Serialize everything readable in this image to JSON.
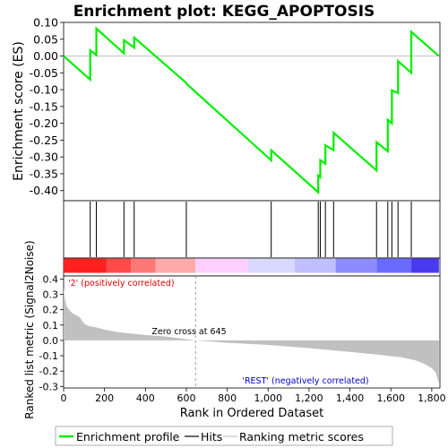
{
  "chart_data": [
    {
      "panel": "enrichment-profile",
      "type": "line",
      "title": "Enrichment plot: KEGG_APOPTOSIS",
      "ylabel": "Enrichment score (ES)",
      "xlim": [
        0,
        1840
      ],
      "ylim": [
        -0.43,
        0.1
      ],
      "yticks": [
        "0.10",
        "0.05",
        "0.00",
        "-0.05",
        "-0.10",
        "-0.15",
        "-0.20",
        "-0.25",
        "-0.30",
        "-0.35",
        "-0.40"
      ],
      "ytick_values": [
        0.1,
        0.05,
        0.0,
        -0.05,
        -0.1,
        -0.15,
        -0.2,
        -0.25,
        -0.3,
        -0.35,
        -0.4
      ],
      "line_color": "#00ee00",
      "x": [
        0,
        130,
        130,
        160,
        160,
        295,
        295,
        345,
        345,
        600,
        600,
        1015,
        1015,
        1245,
        1245,
        1255,
        1255,
        1280,
        1280,
        1320,
        1320,
        1530,
        1530,
        1585,
        1585,
        1605,
        1605,
        1635,
        1635,
        1700,
        1700,
        1835
      ],
      "y": [
        0.0,
        -0.07,
        0.017,
        0.003,
        0.082,
        0.008,
        0.047,
        0.025,
        0.055,
        -0.08,
        -0.082,
        -0.31,
        -0.28,
        -0.405,
        -0.355,
        -0.36,
        -0.31,
        -0.32,
        -0.265,
        -0.28,
        -0.228,
        -0.34,
        -0.256,
        -0.283,
        -0.19,
        -0.2,
        -0.102,
        -0.11,
        -0.015,
        -0.05,
        0.072,
        0.0
      ]
    },
    {
      "panel": "hits",
      "type": "rug",
      "hits": [
        130,
        160,
        295,
        345,
        600,
        1015,
        1245,
        1255,
        1280,
        1320,
        1530,
        1585,
        1605,
        1635,
        1700
      ],
      "bar_colors": [
        "#ff2020",
        "#ff4a4a",
        "#ff7878",
        "#ffaaaa",
        "#ffd0ff",
        "#d8d8ff",
        "#c0c0ff",
        "#8c8cff",
        "#6a6aff",
        "#4a3aee",
        "#2a00cc"
      ],
      "bar_breaks": [
        0,
        210,
        330,
        450,
        645,
        900,
        1130,
        1330,
        1530,
        1700,
        1840
      ]
    },
    {
      "panel": "ranking-metric",
      "type": "area",
      "xlabel": "Rank in Ordered Dataset",
      "ylabel": "Ranked list metric (Signal2Noise)",
      "xlim": [
        0,
        1840
      ],
      "ylim": [
        -0.31,
        0.42
      ],
      "xticks": [
        "0",
        "200",
        "400",
        "600",
        "800",
        "1,000",
        "1,200",
        "1,400",
        "1,600",
        "1,800"
      ],
      "xtick_values": [
        0,
        200,
        400,
        600,
        800,
        1000,
        1200,
        1400,
        1600,
        1800
      ],
      "yticks": [
        "0.4",
        "0.3",
        "0.2",
        "0.1",
        "0.0",
        "-0.1",
        "-0.2",
        "-0.3"
      ],
      "ytick_values": [
        0.4,
        0.3,
        0.2,
        0.1,
        0.0,
        -0.1,
        -0.2,
        -0.3
      ],
      "x": [
        0,
        5,
        15,
        40,
        80,
        100,
        120,
        160,
        200,
        260,
        330,
        400,
        500,
        645,
        800,
        1000,
        1200,
        1400,
        1550,
        1650,
        1720,
        1760,
        1800,
        1820,
        1830,
        1835
      ],
      "y": [
        0.34,
        0.28,
        0.22,
        0.18,
        0.15,
        0.11,
        0.095,
        0.085,
        0.07,
        0.055,
        0.045,
        0.035,
        0.025,
        0.0,
        -0.015,
        -0.03,
        -0.05,
        -0.075,
        -0.095,
        -0.11,
        -0.13,
        -0.15,
        -0.18,
        -0.21,
        -0.26,
        -0.28
      ],
      "fill_color": "#c0c0c0",
      "zero_cross": 645,
      "zero_cross_label": "Zero cross at 645",
      "pos_label": "'2' (positively correlated)",
      "neg_label": "'REST' (negatively correlated)"
    }
  ],
  "legend": {
    "items": [
      {
        "label": "Enrichment profile",
        "color": "#00ee00"
      },
      {
        "label": "Hits",
        "color": "#000000"
      },
      {
        "label": "Ranking metric scores",
        "color": "#c0c0c0"
      }
    ]
  }
}
